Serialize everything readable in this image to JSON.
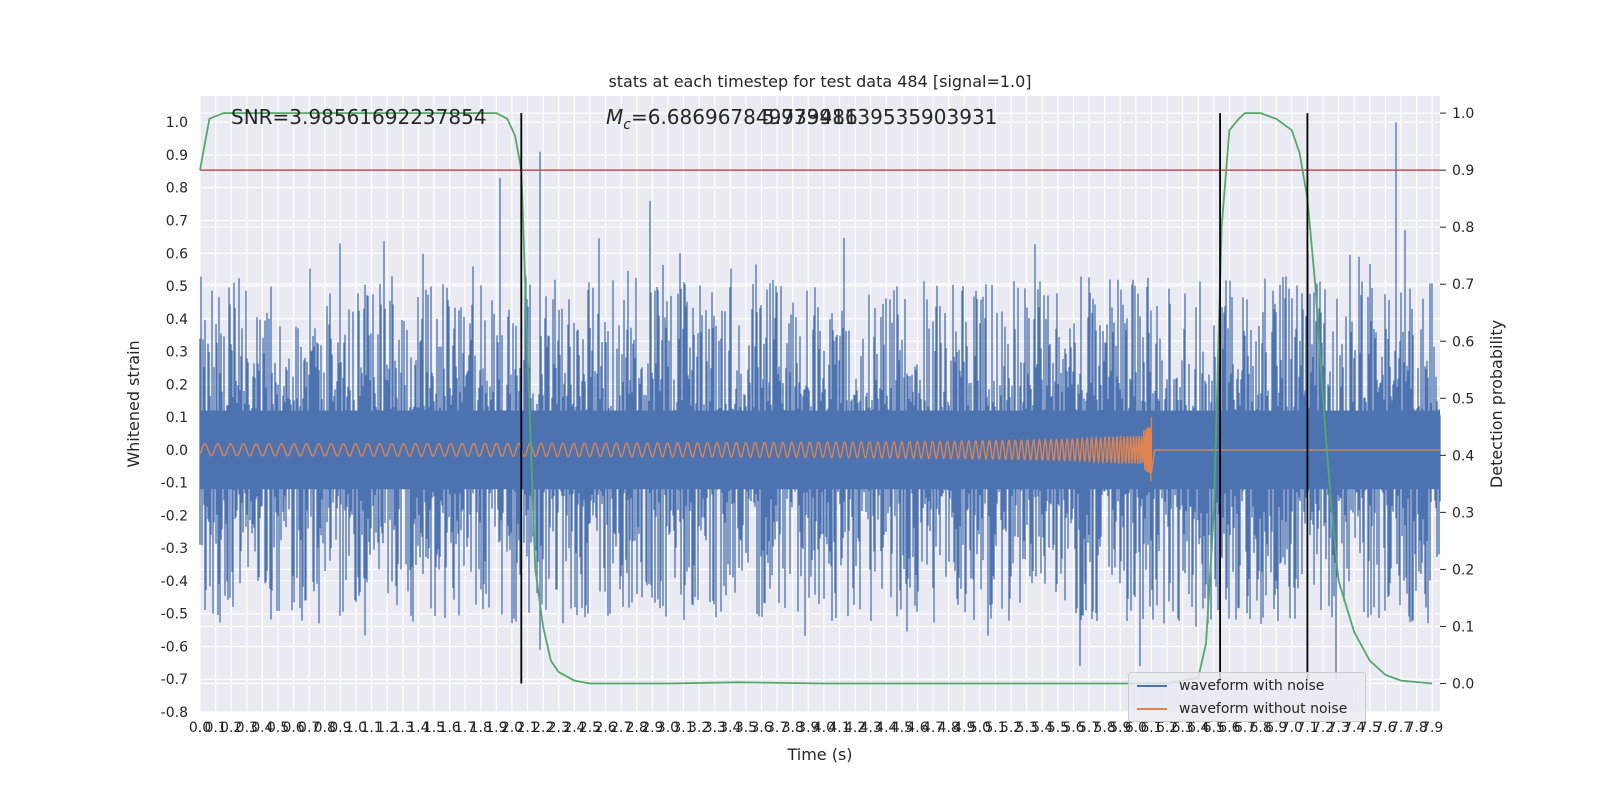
{
  "chart_data": {
    "type": "line",
    "title": "stats at each timestep for test data 484 [signal=1.0]",
    "xlabel": "Time (s)",
    "ylabel": "Whitened strain",
    "y2label": "Detection probability",
    "xlim": [
      0.0,
      7.95
    ],
    "ylim": [
      -0.8,
      1.08
    ],
    "y2lim": [
      -0.05,
      1.03
    ],
    "x_ticks": [
      "0.0",
      "0.1",
      "0.2",
      "0.3",
      "0.4",
      "0.5",
      "0.6",
      "0.7",
      "0.8",
      "0.9",
      "1.0",
      "1.1",
      "1.2",
      "1.3",
      "1.4",
      "1.5",
      "1.6",
      "1.7",
      "1.8",
      "1.9",
      "2.0",
      "2.1",
      "2.2",
      "2.3",
      "2.4",
      "2.5",
      "2.6",
      "2.7",
      "2.8",
      "2.9",
      "3.0",
      "3.1",
      "3.2",
      "3.3",
      "3.4",
      "3.5",
      "3.6",
      "3.7",
      "3.8",
      "3.9",
      "4.0",
      "4.1",
      "4.2",
      "4.3",
      "4.4",
      "4.5",
      "4.6",
      "4.7",
      "4.8",
      "4.9",
      "5.0",
      "5.1",
      "5.2",
      "5.3",
      "5.4",
      "5.5",
      "5.6",
      "5.7",
      "5.8",
      "5.9",
      "6.0",
      "6.1",
      "6.2",
      "6.3",
      "6.4",
      "6.5",
      "6.6",
      "6.7",
      "6.8",
      "6.9",
      "7.0",
      "7.1",
      "7.2",
      "7.3",
      "7.4",
      "7.5",
      "7.6",
      "7.7",
      "7.8",
      "7.9"
    ],
    "y_ticks": [
      "1.0",
      "0.9",
      "0.8",
      "0.7",
      "0.6",
      "0.5",
      "0.4",
      "0.3",
      "0.2",
      "0.1",
      "0.0",
      "-0.1",
      "-0.2",
      "-0.3",
      "-0.4",
      "-0.5",
      "-0.6",
      "-0.7",
      "-0.8"
    ],
    "y2_ticks": [
      "1.0",
      "0.9",
      "0.8",
      "0.7",
      "0.6",
      "0.5",
      "0.4",
      "0.3",
      "0.2",
      "0.1",
      "0.0"
    ],
    "annotations": {
      "snr": "SNR=3.98561692237854",
      "mc": "M_c=6.686967849739486",
      "mc_overlap": "5.97391139535903931"
    },
    "series": [
      {
        "name": "waveform with noise",
        "color": "#4c72b0",
        "kind": "noise",
        "envelope_typical": 0.45,
        "spike_max": 1.0
      },
      {
        "name": "waveform without noise",
        "color": "#dd8452",
        "kind": "chirp",
        "end_time": 6.1,
        "peak_amplitude": 0.1
      },
      {
        "name": "detection probability",
        "color": "#55a868",
        "axis": "right",
        "x": [
          0.0,
          0.06,
          0.15,
          0.3,
          1.0,
          1.9,
          1.97,
          2.02,
          2.06,
          2.1,
          2.15,
          2.2,
          2.25,
          2.3,
          2.4,
          2.5,
          3.0,
          3.45,
          4.0,
          5.0,
          6.0,
          6.2,
          6.4,
          6.45,
          6.5,
          6.53,
          6.55,
          6.6,
          6.66,
          6.7,
          6.8,
          6.9,
          7.0,
          7.05,
          7.1,
          7.15,
          7.2,
          7.25,
          7.3,
          7.4,
          7.5,
          7.6,
          7.7,
          7.9
        ],
        "values": [
          0.9,
          0.99,
          1.0,
          1.0,
          1.0,
          1.0,
          0.99,
          0.96,
          0.9,
          0.58,
          0.2,
          0.1,
          0.04,
          0.02,
          0.005,
          0.0,
          0.0,
          0.002,
          0.0,
          0.0,
          0.0,
          0.0,
          0.01,
          0.07,
          0.3,
          0.6,
          0.8,
          0.97,
          0.99,
          1.0,
          1.0,
          0.99,
          0.97,
          0.93,
          0.85,
          0.7,
          0.5,
          0.32,
          0.18,
          0.09,
          0.04,
          0.015,
          0.005,
          0.0
        ]
      },
      {
        "name": "threshold",
        "color": "#c44e52",
        "axis": "right",
        "value": 0.9
      }
    ],
    "vlines": [
      2.06,
      6.54,
      7.1
    ],
    "grid": true,
    "legend_placement": "lower-right",
    "legend": [
      "waveform with noise",
      "waveform without noise"
    ],
    "colors": {
      "plot_bg": "#eaeaf2",
      "grid": "#ffffff",
      "noise": "#4c72b0",
      "clean": "#dd8452",
      "prob": "#55a868",
      "threshold": "#c44e52",
      "vline": "#000000"
    }
  }
}
